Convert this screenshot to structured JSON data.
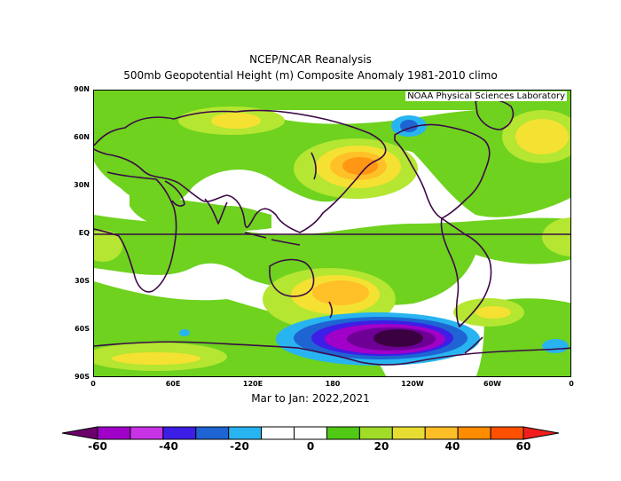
{
  "title_line1": "NCEP/NCAR Reanalysis",
  "title_line2": "500mb Geopotential Height (m) Composite Anomaly 1981-2010 climo",
  "credit": "NOAA Physical Sciences Laboratory",
  "lat_labels": [
    "90N",
    "60N",
    "30N",
    "EQ",
    "30S",
    "60S",
    "90S"
  ],
  "lon_labels": [
    "0",
    "60E",
    "120E",
    "180",
    "120W",
    "60W",
    "0"
  ],
  "subtitle": "Mar to Jan: 2022,2021",
  "colorbar": {
    "labels": [
      "-60",
      "-40",
      "-20",
      "0",
      "20",
      "40",
      "60"
    ],
    "colors": [
      "#6b006b",
      "#a000c8",
      "#c832e6",
      "#3c1ee6",
      "#1e64d2",
      "#28b4f0",
      "#ffffff",
      "#ffffff",
      "#50c814",
      "#a0dc28",
      "#e6dc32",
      "#ffbe28",
      "#ff8c00",
      "#ff5000",
      "#f01e1e"
    ]
  },
  "colors": {
    "green": "#6ed21e",
    "lime": "#b4e632",
    "yellow": "#f5e132",
    "gold": "#ffc028",
    "orange": "#ff9614",
    "cyan": "#28b4f0",
    "blue": "#1e64d2",
    "indigo": "#3c1ee6",
    "violet": "#a000c8",
    "purple": "#6e0096",
    "dark": "#3a0040",
    "coast": "#3c0a46"
  }
}
